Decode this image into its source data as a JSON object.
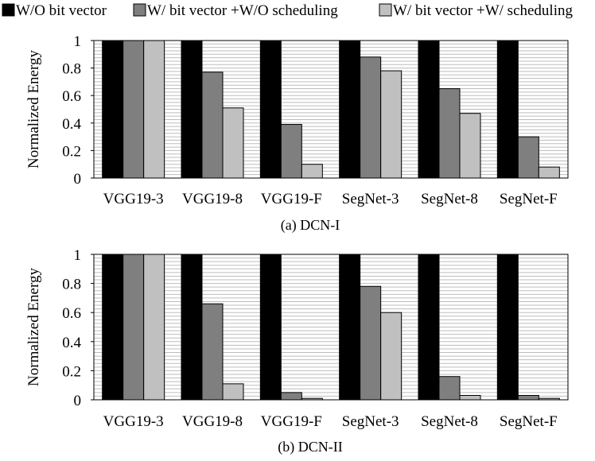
{
  "legend": [
    {
      "name": "W/O bit vector",
      "color": "#000000"
    },
    {
      "name": "W/ bit vector +W/O scheduling",
      "color": "#7f7f7f"
    },
    {
      "name": "W/ bit vector +W/ scheduling",
      "color": "#c0c0c0"
    }
  ],
  "chart_data": [
    {
      "type": "bar",
      "caption": "(a)  DCN-I",
      "ylabel": "Normalized Energy",
      "ylim": [
        0,
        1
      ],
      "yticks": [
        "0",
        "0.2",
        "0.4",
        "0.6",
        "0.8",
        "1"
      ],
      "grid": "horizontal, dense",
      "categories": [
        "VGG19-3",
        "VGG19-8",
        "VGG19-F",
        "SegNet-3",
        "SegNet-8",
        "SegNet-F"
      ],
      "series": [
        {
          "name": "W/O bit vector",
          "values": [
            1,
            1,
            1,
            1,
            1,
            1
          ]
        },
        {
          "name": "W/ bit vector +W/O scheduling",
          "values": [
            1,
            0.77,
            0.39,
            0.88,
            0.65,
            0.3
          ]
        },
        {
          "name": "W/ bit vector +W/ scheduling",
          "values": [
            1,
            0.51,
            0.1,
            0.78,
            0.47,
            0.08
          ]
        }
      ]
    },
    {
      "type": "bar",
      "caption": "(b)  DCN-II",
      "ylabel": "Normalized Energy",
      "ylim": [
        0,
        1
      ],
      "yticks": [
        "0",
        "0.2",
        "0.4",
        "0.6",
        "0.8",
        "1"
      ],
      "grid": "horizontal, dense",
      "categories": [
        "VGG19-3",
        "VGG19-8",
        "VGG19-F",
        "SegNet-3",
        "SegNet-8",
        "SegNet-F"
      ],
      "series": [
        {
          "name": "W/O bit vector",
          "values": [
            1,
            1,
            1,
            1,
            1,
            1
          ]
        },
        {
          "name": "W/ bit vector +W/O scheduling",
          "values": [
            1,
            0.66,
            0.05,
            0.78,
            0.16,
            0.03
          ]
        },
        {
          "name": "W/ bit vector +W/ scheduling",
          "values": [
            1,
            0.11,
            0.01,
            0.6,
            0.03,
            0.01
          ]
        }
      ]
    }
  ]
}
